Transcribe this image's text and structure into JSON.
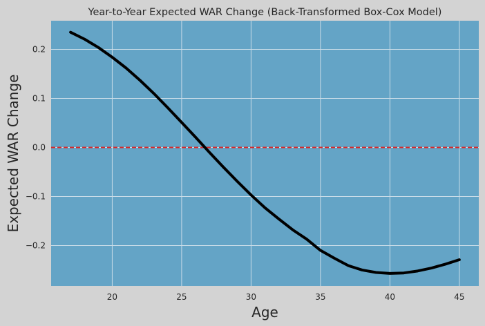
{
  "chart_data": {
    "type": "line",
    "title": "Year-to-Year Expected WAR Change (Back-Transformed Box-Cox Model)",
    "xlabel": "Age",
    "ylabel": "Expected WAR Change",
    "xlim": [
      15.6,
      46.4
    ],
    "ylim": [
      -0.2825,
      0.2585
    ],
    "xticks": [
      20,
      25,
      30,
      35,
      40,
      45
    ],
    "xtick_labels": [
      "20",
      "25",
      "30",
      "35",
      "40",
      "45"
    ],
    "yticks": [
      -0.2,
      -0.1,
      0.0,
      0.1,
      0.2
    ],
    "ytick_labels": [
      "−0.2",
      "−0.1",
      "0.0",
      "0.1",
      "0.2"
    ],
    "grid": true,
    "reference_line": {
      "y": 0.0,
      "style": "dashed",
      "color": "#d62728"
    },
    "series": [
      {
        "color": "#000000",
        "x": [
          17,
          18,
          19,
          20,
          21,
          22,
          23,
          24,
          25,
          26,
          27,
          28,
          29,
          30,
          31,
          32,
          33,
          34,
          35,
          36,
          37,
          38,
          39,
          40,
          41,
          42,
          43,
          44,
          45
        ],
        "y": [
          0.235,
          0.221,
          0.204,
          0.184,
          0.162,
          0.137,
          0.11,
          0.081,
          0.051,
          0.021,
          -0.01,
          -0.04,
          -0.069,
          -0.097,
          -0.123,
          -0.146,
          -0.168,
          -0.187,
          -0.21,
          -0.226,
          -0.241,
          -0.25,
          -0.255,
          -0.257,
          -0.256,
          -0.252,
          -0.246,
          -0.238,
          -0.229
        ]
      }
    ]
  },
  "colors": {
    "figure_bg": "#d3d3d3",
    "plot_bg": "#64a4c6",
    "grid": "#c9dce8",
    "text": "#262626"
  }
}
